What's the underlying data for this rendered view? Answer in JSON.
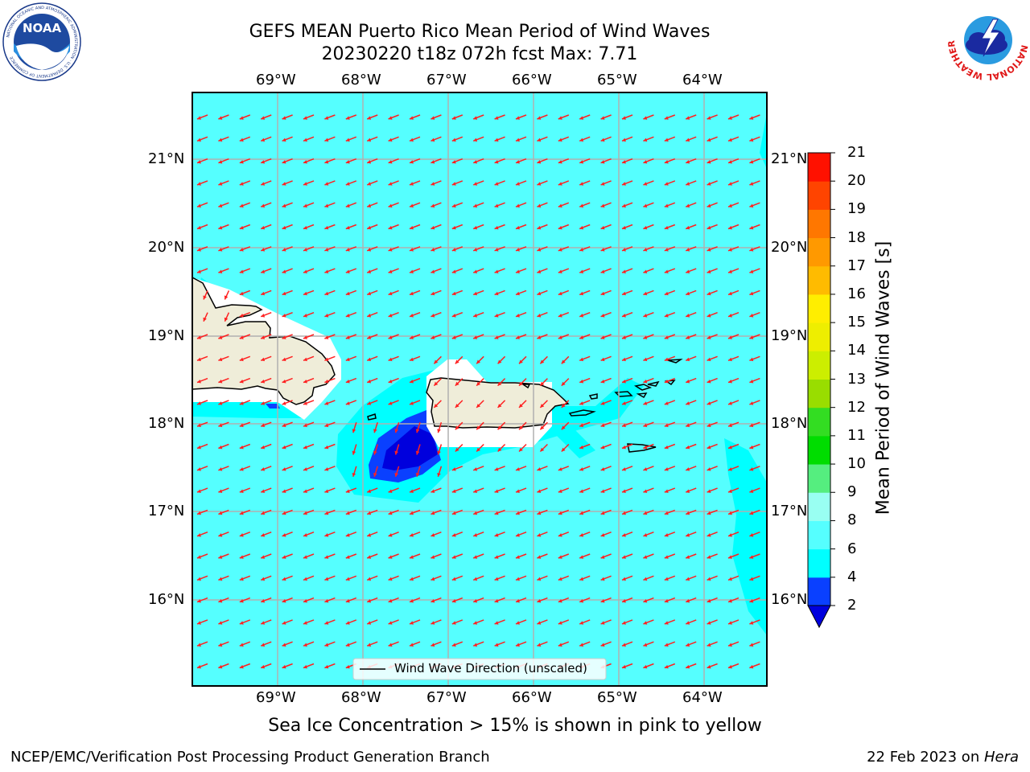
{
  "title": {
    "line1": "GEFS MEAN Puerto Rico Mean Period of Wind Waves",
    "line2": "20230220 t18z 072h fcst   Max: 7.71"
  },
  "map": {
    "lon_labels": [
      "69°W",
      "68°W",
      "67°W",
      "66°W",
      "65°W",
      "64°W"
    ],
    "lat_labels": [
      "21°N",
      "20°N",
      "19°N",
      "18°N",
      "17°N",
      "16°N"
    ],
    "legend_label": "Wind Wave Direction (unscaled)",
    "background_color": "#55ffff",
    "land_color": "#efedd9",
    "arrow_color": "#ff2020"
  },
  "colorbar": {
    "title": "Mean Period of Wind Waves [s]",
    "ticks": [
      "2",
      "4",
      "6",
      "8",
      "9",
      "10",
      "11",
      "12",
      "13",
      "14",
      "15",
      "16",
      "17",
      "18",
      "19",
      "20",
      "21"
    ],
    "colors": [
      "#0a40ff",
      "#00ffff",
      "#55ffff",
      "#99fff2",
      "#55ee7f",
      "#00dd00",
      "#33dd22",
      "#99dd00",
      "#ccee00",
      "#eeee00",
      "#ffee00",
      "#ffbb00",
      "#ff9900",
      "#ff7700",
      "#ff4400",
      "#ff1100"
    ],
    "under_color": "#0000dd"
  },
  "note": "Sea Ice Concentration > 15% is shown in pink to yellow",
  "footer": {
    "left": "NCEP/EMC/Verification Post Processing Product Generation Branch",
    "right_prefix": "22 Feb 2023 on ",
    "right_host": "Hera"
  },
  "logos": {
    "noaa": "NOAA",
    "noaa_ring": "NATIONAL OCEANIC AND ATMOSPHERIC ADMINISTRATION · U.S. DEPARTMENT OF COMMERCE",
    "nws_ring": "NATIONAL WEATHER SERVICE"
  }
}
